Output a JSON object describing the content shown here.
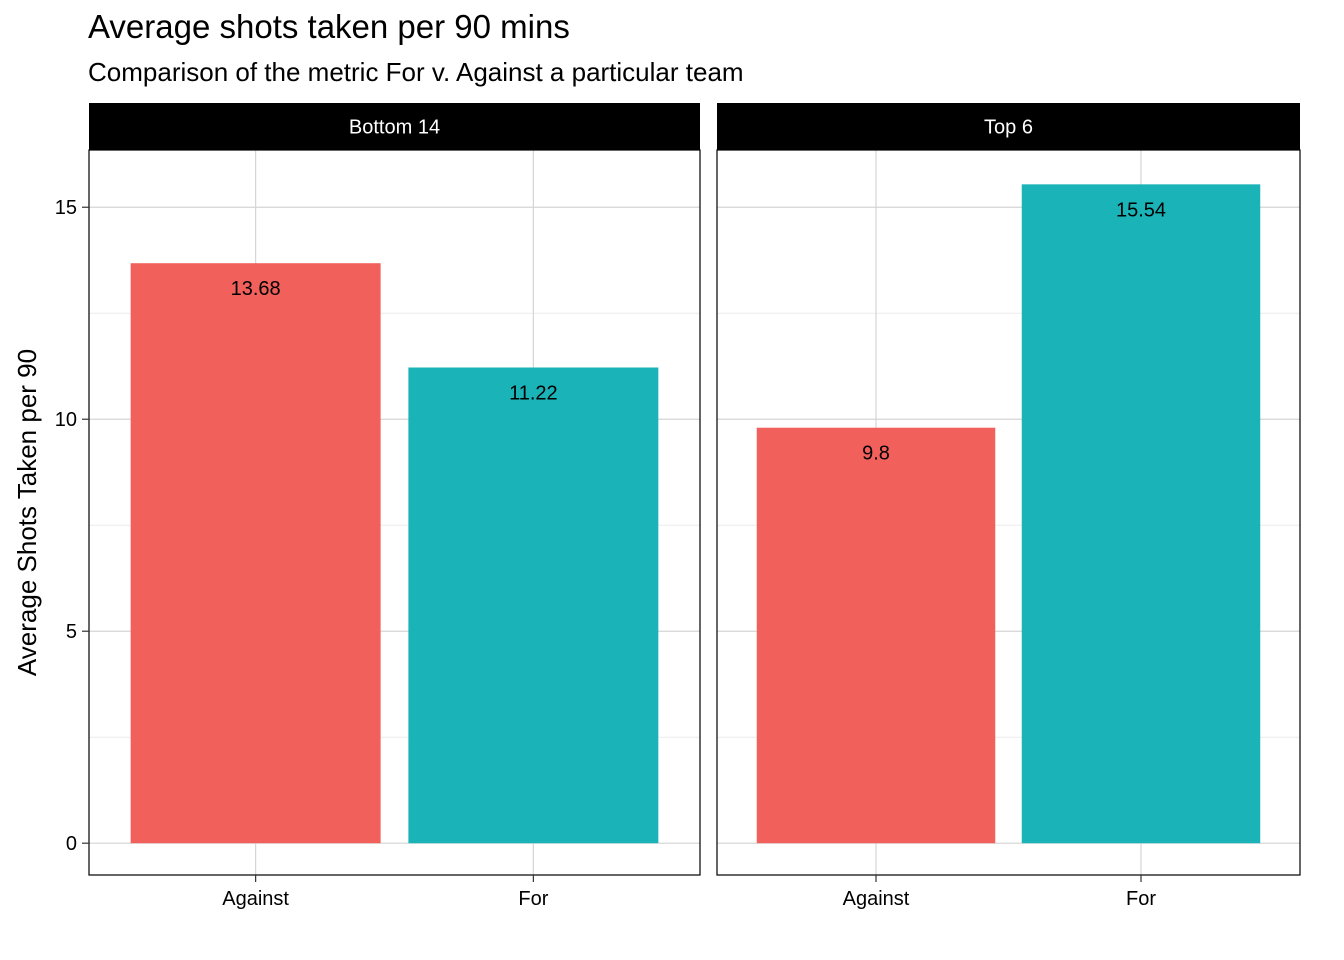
{
  "title": "Average shots taken per 90 mins",
  "subtitle": "Comparison of the metric For v. Against a particular team",
  "colors": {
    "against": "#F2605C",
    "for": "#1AB3B8",
    "strip_bg": "#000000",
    "grid": "#d9d9d9"
  },
  "chart_data": {
    "type": "bar",
    "title": "Average shots taken per 90 mins",
    "subtitle": "Comparison of the metric For v. Against a particular team",
    "xlabel": "",
    "ylabel": "Average Shots Taken per 90",
    "ylim": [
      -0.75,
      16.35
    ],
    "yticks": [
      0,
      5,
      10,
      15
    ],
    "categories": [
      "Against",
      "For"
    ],
    "grid": true,
    "facets": [
      {
        "name": "Bottom 14",
        "values": [
          13.68,
          11.22
        ],
        "labels": [
          "13.68",
          "11.22"
        ]
      },
      {
        "name": "Top 6",
        "values": [
          9.8,
          15.54
        ],
        "labels": [
          "9.8",
          "15.54"
        ]
      }
    ]
  }
}
